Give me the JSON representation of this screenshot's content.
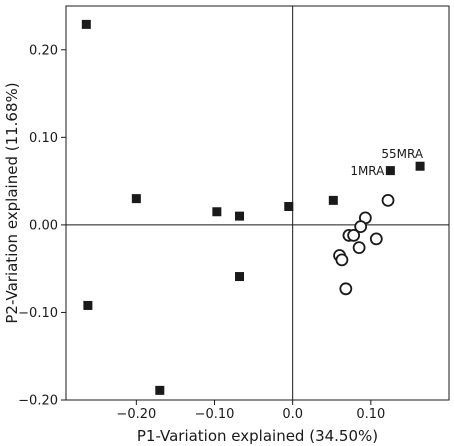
{
  "chart_data": {
    "type": "scatter",
    "title": "",
    "xlabel": "P1-Variation explained (34.50%)",
    "ylabel": "P2-Variation explained (11.68%)",
    "xlim": [
      -0.29,
      0.2
    ],
    "ylim": [
      -0.2,
      0.25
    ],
    "x_ticks": [
      -0.2,
      -0.1,
      0.0,
      0.1
    ],
    "x_tick_labels": [
      "−0.20",
      "−0.10",
      "0.0",
      "0.10"
    ],
    "y_ticks": [
      -0.2,
      -0.1,
      0.0,
      0.1,
      0.2
    ],
    "y_tick_labels": [
      "−0.20",
      "−0.10",
      "0.00",
      "0.10",
      "0.20"
    ],
    "grid": false,
    "reference_lines": {
      "x": 0.0,
      "y": 0.0
    },
    "series": [
      {
        "marker": "filled-square",
        "color": "#1a1a1a",
        "points": [
          {
            "x": -0.264,
            "y": 0.229
          },
          {
            "x": -0.2,
            "y": 0.03
          },
          {
            "x": -0.097,
            "y": 0.015
          },
          {
            "x": -0.068,
            "y": 0.01
          },
          {
            "x": -0.005,
            "y": 0.021
          },
          {
            "x": 0.052,
            "y": 0.028
          },
          {
            "x": 0.125,
            "y": 0.062
          },
          {
            "x": 0.163,
            "y": 0.067
          },
          {
            "x": -0.068,
            "y": -0.059
          },
          {
            "x": -0.262,
            "y": -0.092
          },
          {
            "x": -0.17,
            "y": -0.189
          }
        ]
      },
      {
        "marker": "open-circle",
        "color": "#1a1a1a",
        "points": [
          {
            "x": 0.122,
            "y": 0.028
          },
          {
            "x": 0.093,
            "y": 0.008
          },
          {
            "x": 0.087,
            "y": -0.002
          },
          {
            "x": 0.072,
            "y": -0.012
          },
          {
            "x": 0.078,
            "y": -0.012
          },
          {
            "x": 0.107,
            "y": -0.016
          },
          {
            "x": 0.085,
            "y": -0.026
          },
          {
            "x": 0.06,
            "y": -0.035
          },
          {
            "x": 0.063,
            "y": -0.04
          },
          {
            "x": 0.068,
            "y": -0.073
          }
        ]
      }
    ],
    "annotations": [
      {
        "text": "55MRA",
        "x": 0.163,
        "y": 0.067,
        "anchor": "end",
        "placement": "above-left"
      },
      {
        "text": "1MRA",
        "x": 0.125,
        "y": 0.062,
        "anchor": "end",
        "placement": "left"
      }
    ]
  }
}
